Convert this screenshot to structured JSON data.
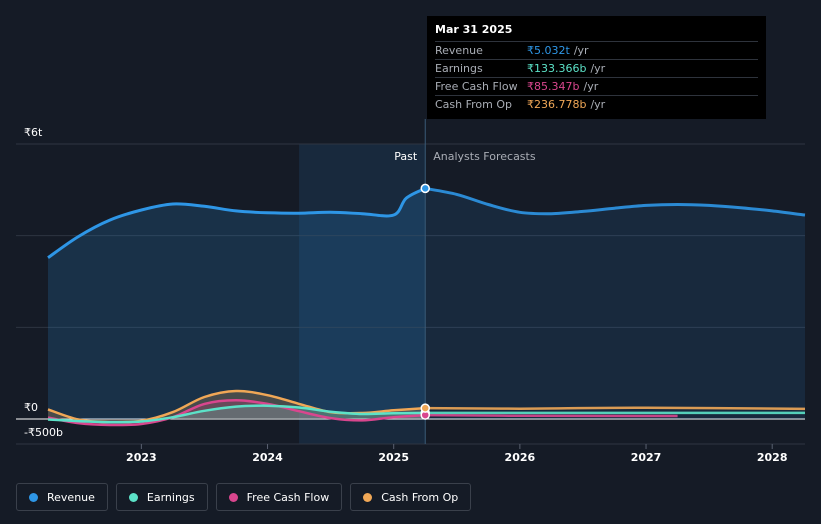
{
  "tooltip": {
    "date": "Mar 31 2025",
    "rows": [
      {
        "label": "Revenue",
        "value": "₹5.032t",
        "unit": "/yr",
        "color": "#2e96e6"
      },
      {
        "label": "Earnings",
        "value": "₹133.366b",
        "unit": "/yr",
        "color": "#5ce2c8"
      },
      {
        "label": "Free Cash Flow",
        "value": "₹85.347b",
        "unit": "/yr",
        "color": "#d9468e"
      },
      {
        "label": "Cash From Op",
        "value": "₹236.778b",
        "unit": "/yr",
        "color": "#f0a756"
      }
    ]
  },
  "labels": {
    "past": "Past",
    "forecast": "Analysts Forecasts"
  },
  "legend": [
    {
      "label": "Revenue",
      "color": "#2e96e6"
    },
    {
      "label": "Earnings",
      "color": "#5ce2c8"
    },
    {
      "label": "Free Cash Flow",
      "color": "#d9468e"
    },
    {
      "label": "Cash From Op",
      "color": "#f0a756"
    }
  ],
  "chart_data": {
    "type": "line",
    "y_tick_labels": [
      "₹6t",
      "₹0",
      "-₹500b"
    ],
    "x_tick_labels": [
      "2023",
      "2024",
      "2025",
      "2026",
      "2027",
      "2028"
    ],
    "x_ticks": [
      2023,
      2024,
      2025,
      2026,
      2027,
      2028
    ],
    "xlim": [
      2022.26,
      2028.26
    ],
    "ylim": [
      -500,
      6000
    ],
    "y_gridlines": [
      6000,
      4000,
      2000,
      0
    ],
    "past_shade_start": 2024.25,
    "divider_x": 2025.25,
    "series": [
      {
        "name": "Revenue",
        "color": "#2e96e6",
        "unit": "₹b",
        "past": [
          [
            2022.26,
            3520
          ],
          [
            2022.5,
            3980
          ],
          [
            2022.75,
            4340
          ],
          [
            2023.0,
            4560
          ],
          [
            2023.25,
            4690
          ],
          [
            2023.5,
            4640
          ],
          [
            2023.75,
            4540
          ],
          [
            2024.0,
            4500
          ],
          [
            2024.25,
            4490
          ],
          [
            2024.5,
            4510
          ],
          [
            2024.75,
            4480
          ],
          [
            2025.0,
            4450
          ],
          [
            2025.1,
            4820
          ],
          [
            2025.25,
            5032
          ]
        ],
        "forecast": [
          [
            2025.25,
            5032
          ],
          [
            2025.5,
            4900
          ],
          [
            2025.75,
            4680
          ],
          [
            2026.0,
            4510
          ],
          [
            2026.25,
            4480
          ],
          [
            2026.5,
            4530
          ],
          [
            2026.75,
            4600
          ],
          [
            2027.0,
            4660
          ],
          [
            2027.25,
            4680
          ],
          [
            2027.5,
            4660
          ],
          [
            2027.75,
            4610
          ],
          [
            2028.0,
            4540
          ],
          [
            2028.26,
            4450
          ]
        ]
      },
      {
        "name": "Earnings",
        "color": "#5ce2c8",
        "unit": "₹b",
        "past": [
          [
            2022.26,
            -10
          ],
          [
            2022.5,
            -45
          ],
          [
            2022.75,
            -70
          ],
          [
            2023.0,
            -55
          ],
          [
            2023.25,
            40
          ],
          [
            2023.5,
            180
          ],
          [
            2023.75,
            270
          ],
          [
            2024.0,
            290
          ],
          [
            2024.25,
            250
          ],
          [
            2024.5,
            160
          ],
          [
            2024.75,
            110
          ],
          [
            2025.0,
            125
          ],
          [
            2025.25,
            133
          ]
        ],
        "forecast": [
          [
            2025.25,
            133
          ],
          [
            2026.0,
            133
          ],
          [
            2027.0,
            133
          ],
          [
            2028.26,
            133
          ]
        ]
      },
      {
        "name": "Free Cash Flow",
        "color": "#d9468e",
        "unit": "₹b",
        "past": [
          [
            2022.26,
            30
          ],
          [
            2022.5,
            -90
          ],
          [
            2022.75,
            -130
          ],
          [
            2023.0,
            -110
          ],
          [
            2023.25,
            40
          ],
          [
            2023.5,
            330
          ],
          [
            2023.75,
            410
          ],
          [
            2024.0,
            330
          ],
          [
            2024.25,
            170
          ],
          [
            2024.5,
            20
          ],
          [
            2024.75,
            -30
          ],
          [
            2025.0,
            40
          ],
          [
            2025.25,
            85
          ]
        ],
        "forecast": [
          [
            2025.25,
            85
          ],
          [
            2026.0,
            70
          ],
          [
            2027.0,
            65
          ],
          [
            2027.25,
            65
          ]
        ]
      },
      {
        "name": "Cash From Op",
        "color": "#f0a756",
        "unit": "₹b",
        "past": [
          [
            2022.26,
            210
          ],
          [
            2022.5,
            -10
          ],
          [
            2022.75,
            -70
          ],
          [
            2023.0,
            -40
          ],
          [
            2023.25,
            150
          ],
          [
            2023.5,
            480
          ],
          [
            2023.75,
            610
          ],
          [
            2024.0,
            520
          ],
          [
            2024.25,
            330
          ],
          [
            2024.5,
            150
          ],
          [
            2024.75,
            130
          ],
          [
            2025.0,
            190
          ],
          [
            2025.25,
            237
          ]
        ],
        "forecast": [
          [
            2025.25,
            237
          ],
          [
            2026.0,
            225
          ],
          [
            2027.0,
            245
          ],
          [
            2028.26,
            220
          ]
        ]
      }
    ]
  }
}
